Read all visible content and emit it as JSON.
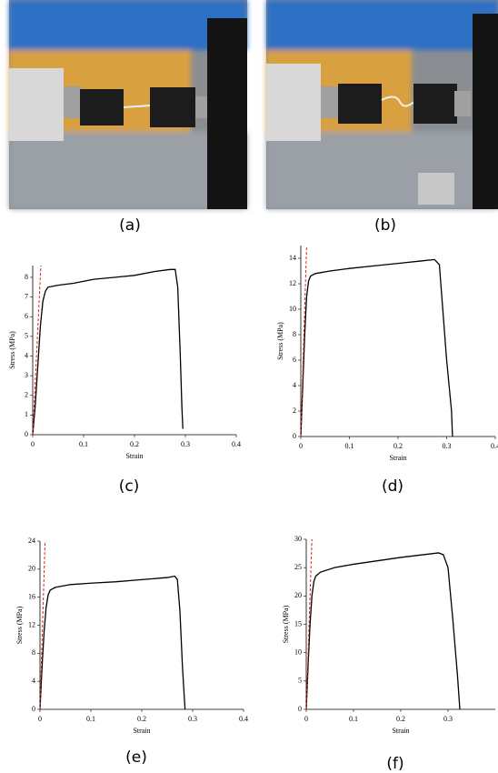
{
  "photos": [
    {
      "label": "(a)"
    },
    {
      "label": "(b)"
    }
  ],
  "chart_data": [
    {
      "type": "line",
      "label": "(c)",
      "x_label": "Strain",
      "y_label": "Stress (MPa)",
      "xlim": [
        0,
        0.4
      ],
      "xticks": [
        0,
        0.1,
        0.2,
        0.3,
        0.4
      ],
      "ylim": [
        0,
        8.6
      ],
      "yticks": [
        0,
        1,
        2,
        3,
        4,
        5,
        6,
        7,
        8
      ],
      "series": [
        {
          "color": "#000000",
          "x": [
            0,
            0.005,
            0.01,
            0.015,
            0.02,
            0.025,
            0.03,
            0.05,
            0.08,
            0.12,
            0.16,
            0.2,
            0.24,
            0.27,
            0.28,
            0.285,
            0.29,
            0.293,
            0.295
          ],
          "values": [
            0,
            1.5,
            3.5,
            5.5,
            6.8,
            7.3,
            7.5,
            7.6,
            7.7,
            7.9,
            8.0,
            8.1,
            8.3,
            8.4,
            8.4,
            7.5,
            4,
            1.5,
            0.3
          ]
        },
        {
          "color": "#d62020",
          "dashed": true,
          "x": [
            0,
            0.016
          ],
          "values": [
            0,
            8.6
          ]
        }
      ]
    },
    {
      "type": "line",
      "label": "(d)",
      "x_label": "Strain",
      "y_label": "Stress (MPa)",
      "xlim": [
        0,
        0.4
      ],
      "xticks": [
        0,
        0.1,
        0.2,
        0.3,
        0.4
      ],
      "ylim": [
        0,
        15
      ],
      "yticks": [
        0,
        2,
        4,
        6,
        8,
        10,
        12,
        14
      ],
      "series": [
        {
          "color": "#000000",
          "x": [
            0,
            0.004,
            0.008,
            0.012,
            0.016,
            0.02,
            0.03,
            0.06,
            0.1,
            0.15,
            0.2,
            0.25,
            0.275,
            0.285,
            0.29,
            0.3,
            0.31,
            0.312
          ],
          "values": [
            0,
            4,
            8,
            11,
            12.2,
            12.6,
            12.8,
            13,
            13.2,
            13.4,
            13.6,
            13.8,
            13.9,
            13.5,
            11,
            6,
            2,
            0
          ]
        },
        {
          "color": "#d62020",
          "dashed": true,
          "x": [
            0,
            0.012
          ],
          "values": [
            0,
            15
          ]
        }
      ]
    },
    {
      "type": "line",
      "label": "(e)",
      "x_label": "Strain",
      "y_label": "Stress (MPa)",
      "xlim": [
        0,
        0.4
      ],
      "xticks": [
        0,
        0.1,
        0.2,
        0.3,
        0.4
      ],
      "ylim": [
        0,
        24
      ],
      "yticks": [
        0,
        4,
        8,
        12,
        16,
        20,
        24
      ],
      "series": [
        {
          "color": "#000000",
          "x": [
            0,
            0.004,
            0.008,
            0.012,
            0.016,
            0.02,
            0.03,
            0.06,
            0.1,
            0.15,
            0.2,
            0.25,
            0.265,
            0.27,
            0.275,
            0.28,
            0.285
          ],
          "values": [
            0,
            6,
            11,
            14.5,
            16.3,
            17,
            17.4,
            17.8,
            18,
            18.2,
            18.5,
            18.8,
            19,
            18.5,
            14,
            6,
            0
          ]
        },
        {
          "color": "#d62020",
          "dashed": true,
          "x": [
            0,
            0.01
          ],
          "values": [
            0,
            24
          ]
        }
      ]
    },
    {
      "type": "line",
      "label": "(f)",
      "x_label": "Strain",
      "y_label": "Stress (MPa)",
      "xlim": [
        0,
        0.4
      ],
      "xticks": [
        0,
        0.1,
        0.2,
        0.3
      ],
      "ylim": [
        0,
        30
      ],
      "yticks": [
        0,
        5,
        10,
        15,
        20,
        25,
        30
      ],
      "series": [
        {
          "color": "#000000",
          "x": [
            0,
            0.004,
            0.008,
            0.012,
            0.016,
            0.02,
            0.03,
            0.06,
            0.1,
            0.15,
            0.2,
            0.25,
            0.28,
            0.29,
            0.3,
            0.31,
            0.32,
            0.325
          ],
          "values": [
            0,
            8,
            15,
            20,
            22.5,
            23.5,
            24.2,
            25,
            25.6,
            26.2,
            26.8,
            27.3,
            27.6,
            27.3,
            25,
            16,
            6,
            0
          ]
        },
        {
          "color": "#d62020",
          "dashed": true,
          "x": [
            0,
            0.012
          ],
          "values": [
            0,
            30
          ]
        }
      ]
    }
  ]
}
